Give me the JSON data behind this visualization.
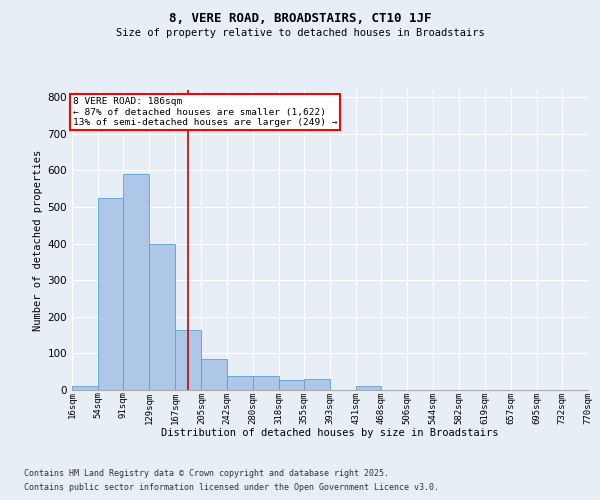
{
  "title1": "8, VERE ROAD, BROADSTAIRS, CT10 1JF",
  "title2": "Size of property relative to detached houses in Broadstairs",
  "xlabel": "Distribution of detached houses by size in Broadstairs",
  "ylabel": "Number of detached properties",
  "annotation_title": "8 VERE ROAD: 186sqm",
  "annotation_line1": "← 87% of detached houses are smaller (1,622)",
  "annotation_line2": "13% of semi-detached houses are larger (249) →",
  "property_size": 186,
  "bin_edges": [
    16,
    54,
    91,
    129,
    167,
    205,
    242,
    280,
    318,
    355,
    393,
    431,
    468,
    506,
    544,
    582,
    619,
    657,
    695,
    732,
    770
  ],
  "bin_labels": [
    "16sqm",
    "54sqm",
    "91sqm",
    "129sqm",
    "167sqm",
    "205sqm",
    "242sqm",
    "280sqm",
    "318sqm",
    "355sqm",
    "393sqm",
    "431sqm",
    "468sqm",
    "506sqm",
    "544sqm",
    "582sqm",
    "619sqm",
    "657sqm",
    "695sqm",
    "732sqm",
    "770sqm"
  ],
  "bar_heights": [
    10,
    525,
    590,
    400,
    165,
    85,
    38,
    38,
    28,
    30,
    0,
    12,
    0,
    0,
    0,
    0,
    0,
    0,
    0,
    0
  ],
  "bar_color": "#aec6e8",
  "bar_edge_color": "#5a9fd4",
  "vline_x": 186,
  "vline_color": "#cc0000",
  "background_color": "#e8eef5",
  "plot_background": "#e8eef5",
  "ylim": [
    0,
    820
  ],
  "yticks": [
    0,
    100,
    200,
    300,
    400,
    500,
    600,
    700,
    800
  ],
  "footer1": "Contains HM Land Registry data © Crown copyright and database right 2025.",
  "footer2": "Contains public sector information licensed under the Open Government Licence v3.0."
}
